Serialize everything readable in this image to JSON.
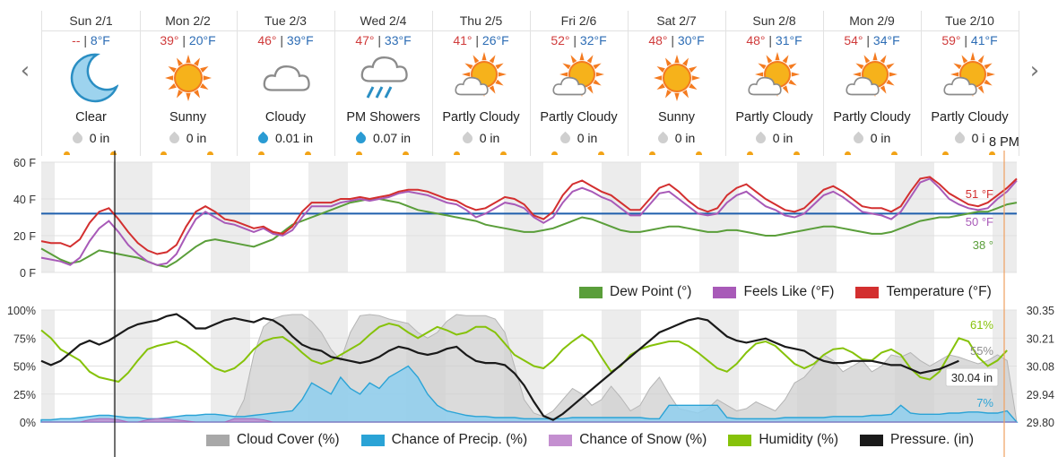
{
  "nav": {
    "prev_icon": "chevron-left-icon",
    "next_icon": "chevron-right-icon",
    "prev": "‹",
    "next": "›"
  },
  "forecast": [
    {
      "day": "Sun 2/1",
      "hi": "--",
      "lo": "8°F",
      "condition": "Clear",
      "icon": "moon-icon",
      "precip": "0 in",
      "drop": "gray"
    },
    {
      "day": "Mon 2/2",
      "hi": "39°",
      "lo": "20°F",
      "condition": "Sunny",
      "icon": "sun-icon",
      "precip": "0 in",
      "drop": "gray"
    },
    {
      "day": "Tue 2/3",
      "hi": "46°",
      "lo": "39°F",
      "condition": "Cloudy",
      "icon": "cloud-icon",
      "precip": "0.01 in",
      "drop": "blue"
    },
    {
      "day": "Wed 2/4",
      "hi": "47°",
      "lo": "33°F",
      "condition": "PM Showers",
      "icon": "rain-icon",
      "precip": "0.07 in",
      "drop": "blue"
    },
    {
      "day": "Thu 2/5",
      "hi": "41°",
      "lo": "26°F",
      "condition": "Partly Cloudy",
      "icon": "partly-cloudy-icon",
      "precip": "0 in",
      "drop": "gray"
    },
    {
      "day": "Fri 2/6",
      "hi": "52°",
      "lo": "32°F",
      "condition": "Partly Cloudy",
      "icon": "partly-cloudy-icon",
      "precip": "0 in",
      "drop": "gray"
    },
    {
      "day": "Sat 2/7",
      "hi": "48°",
      "lo": "30°F",
      "condition": "Sunny",
      "icon": "sun-icon",
      "precip": "0 in",
      "drop": "gray"
    },
    {
      "day": "Sun 2/8",
      "hi": "48°",
      "lo": "31°F",
      "condition": "Partly Cloudy",
      "icon": "partly-cloudy-icon",
      "precip": "0 in",
      "drop": "gray"
    },
    {
      "day": "Mon 2/9",
      "hi": "54°",
      "lo": "34°F",
      "condition": "Partly Cloudy",
      "icon": "partly-cloudy-icon",
      "precip": "0 in",
      "drop": "gray"
    },
    {
      "day": "Tue 2/10",
      "hi": "59°",
      "lo": "41°F",
      "condition": "Partly Cloudy",
      "icon": "partly-cloudy-icon",
      "precip": "0 i",
      "drop": "gray"
    }
  ],
  "time_label": "8 PM",
  "colors": {
    "temperature": "#d32f2f",
    "feels_like": "#a85ab8",
    "dew_point": "#5a9e3a",
    "humidity": "#86c20a",
    "pressure": "#1a1a1a",
    "cloud": "#bdbdbd",
    "precip": "#2aa3d6",
    "snow": "#c48fd0",
    "reference": "#1f5fad",
    "accent": "#f5a623"
  },
  "chart_data": [
    {
      "type": "line",
      "y_ticks": [
        "60 F",
        "40 F",
        "20 F",
        "0 F"
      ],
      "ylim": [
        0,
        60
      ],
      "reference_line": 32,
      "series": [
        {
          "name": "Temperature (°F)",
          "current_label": "51 °F",
          "values": [
            17,
            16,
            16,
            14,
            18,
            27,
            33,
            35,
            29,
            22,
            16,
            12,
            10,
            11,
            15,
            25,
            33,
            36,
            33,
            29,
            28,
            26,
            24,
            25,
            22,
            21,
            25,
            33,
            38,
            38,
            38,
            40,
            40,
            41,
            40,
            41,
            42,
            44,
            45,
            45,
            44,
            42,
            40,
            39,
            36,
            34,
            35,
            38,
            41,
            40,
            37,
            31,
            29,
            33,
            42,
            48,
            50,
            47,
            44,
            42,
            38,
            34,
            34,
            40,
            46,
            48,
            44,
            39,
            35,
            33,
            35,
            42,
            46,
            48,
            44,
            40,
            37,
            34,
            33,
            35,
            40,
            45,
            47,
            44,
            40,
            36,
            35,
            35,
            33,
            36,
            44,
            51,
            52,
            48,
            43,
            40,
            37,
            36,
            38,
            42,
            46,
            51
          ]
        },
        {
          "name": "Feels Like (°F)",
          "current_label": "50 °F",
          "values": [
            8,
            7,
            6,
            4,
            8,
            17,
            24,
            28,
            22,
            15,
            10,
            6,
            4,
            5,
            10,
            20,
            29,
            33,
            30,
            27,
            26,
            24,
            22,
            24,
            21,
            20,
            23,
            30,
            36,
            36,
            36,
            38,
            39,
            40,
            39,
            40,
            41,
            43,
            44,
            43,
            42,
            40,
            38,
            37,
            34,
            30,
            32,
            35,
            38,
            37,
            35,
            30,
            27,
            30,
            38,
            44,
            46,
            44,
            41,
            39,
            35,
            31,
            31,
            37,
            43,
            44,
            40,
            36,
            32,
            31,
            32,
            38,
            42,
            44,
            40,
            36,
            34,
            31,
            30,
            32,
            37,
            42,
            44,
            41,
            37,
            33,
            32,
            31,
            29,
            33,
            41,
            49,
            51,
            46,
            40,
            37,
            35,
            34,
            35,
            40,
            44,
            50
          ]
        },
        {
          "name": "Dew Point (°)",
          "current_label": "38 °",
          "values": [
            13,
            10,
            7,
            5,
            6,
            9,
            12,
            11,
            10,
            9,
            8,
            6,
            4,
            3,
            6,
            10,
            14,
            17,
            18,
            17,
            16,
            15,
            14,
            16,
            18,
            22,
            26,
            28,
            30,
            32,
            34,
            36,
            38,
            39,
            40,
            40,
            39,
            38,
            36,
            34,
            33,
            32,
            31,
            30,
            29,
            28,
            26,
            25,
            24,
            23,
            22,
            22,
            23,
            24,
            26,
            28,
            30,
            29,
            27,
            25,
            23,
            22,
            22,
            23,
            24,
            25,
            25,
            24,
            23,
            22,
            22,
            23,
            23,
            22,
            21,
            20,
            20,
            21,
            22,
            23,
            24,
            25,
            25,
            24,
            23,
            22,
            21,
            21,
            22,
            24,
            26,
            28,
            29,
            30,
            30,
            31,
            32,
            33,
            33,
            35,
            37,
            38
          ]
        }
      ]
    },
    {
      "type": "area",
      "y_ticks_left": [
        "100%",
        "75%",
        "50%",
        "25%",
        "0%"
      ],
      "y_ticks_right": [
        "30.35",
        "30.21",
        "30.08",
        "29.94",
        "29.80"
      ],
      "ylim": [
        0,
        100
      ],
      "ylim_right": [
        29.8,
        30.35
      ],
      "series": [
        {
          "name": "Cloud Cover (%)",
          "current_label": "55%",
          "values": [
            0,
            0,
            0,
            0,
            0,
            0,
            0,
            0,
            0,
            0,
            0,
            0,
            0,
            0,
            0,
            0,
            0,
            0,
            0,
            0,
            3,
            20,
            60,
            85,
            92,
            95,
            96,
            96,
            90,
            80,
            65,
            55,
            80,
            95,
            96,
            95,
            92,
            90,
            88,
            80,
            75,
            80,
            90,
            96,
            95,
            95,
            95,
            92,
            80,
            50,
            20,
            8,
            5,
            10,
            20,
            30,
            25,
            15,
            20,
            32,
            22,
            10,
            15,
            30,
            40,
            25,
            12,
            10,
            8,
            12,
            20,
            15,
            10,
            12,
            18,
            14,
            10,
            20,
            35,
            40,
            50,
            60,
            55,
            45,
            50,
            55,
            45,
            50,
            60,
            58,
            62,
            55,
            50,
            55,
            60,
            58,
            55,
            52,
            55,
            60,
            55
          ]
        },
        {
          "name": "Chance of Precip. (%)",
          "current_label": "7%",
          "values": [
            2,
            2,
            3,
            3,
            4,
            5,
            6,
            6,
            5,
            4,
            4,
            3,
            3,
            4,
            5,
            6,
            6,
            7,
            7,
            6,
            5,
            5,
            6,
            7,
            8,
            9,
            10,
            20,
            35,
            30,
            25,
            40,
            30,
            25,
            35,
            30,
            40,
            45,
            50,
            40,
            25,
            15,
            10,
            8,
            6,
            5,
            5,
            4,
            4,
            4,
            3,
            3,
            3,
            3,
            3,
            4,
            4,
            4,
            4,
            4,
            4,
            4,
            4,
            3,
            3,
            15,
            15,
            15,
            15,
            15,
            15,
            4,
            3,
            3,
            3,
            3,
            3,
            4,
            4,
            4,
            4,
            4,
            5,
            5,
            5,
            5,
            6,
            6,
            7,
            15,
            8,
            7,
            7,
            7,
            8,
            8,
            9,
            9,
            8,
            8,
            10
          ]
        },
        {
          "name": "Chance of Snow (%)",
          "current_label": "",
          "values": [
            0,
            0,
            0,
            0,
            0,
            2,
            3,
            3,
            2,
            0,
            0,
            2,
            3,
            3,
            2,
            1,
            0,
            0,
            0,
            0,
            3,
            3,
            3,
            2,
            0,
            0,
            0,
            0,
            0,
            0,
            0,
            0,
            0,
            0,
            0,
            0,
            0,
            0,
            0,
            0,
            0,
            0,
            0,
            0,
            0,
            0,
            0,
            0,
            0,
            0,
            0,
            0,
            0,
            0,
            0,
            0,
            0,
            0,
            0,
            0,
            0,
            0,
            0,
            0,
            0,
            0,
            0,
            0,
            0,
            0,
            0,
            0,
            0,
            0,
            0,
            0,
            0,
            0,
            0,
            0,
            0,
            0,
            0,
            0,
            0,
            0,
            0,
            0,
            0,
            0,
            0,
            0,
            0,
            0,
            0,
            0,
            0,
            0,
            0,
            0,
            0
          ]
        },
        {
          "name": "Humidity (%)",
          "current_label": "61%",
          "values": [
            82,
            75,
            65,
            60,
            55,
            45,
            40,
            38,
            36,
            44,
            55,
            65,
            68,
            70,
            72,
            68,
            62,
            55,
            48,
            45,
            48,
            55,
            65,
            72,
            75,
            76,
            70,
            62,
            55,
            52,
            55,
            60,
            65,
            70,
            78,
            85,
            88,
            86,
            80,
            75,
            80,
            85,
            82,
            78,
            80,
            85,
            85,
            80,
            70,
            60,
            55,
            50,
            48,
            55,
            65,
            72,
            78,
            72,
            58,
            45,
            50,
            60,
            65,
            68,
            70,
            72,
            72,
            68,
            62,
            55,
            48,
            45,
            52,
            62,
            70,
            72,
            68,
            60,
            52,
            48,
            52,
            60,
            65,
            66,
            62,
            56,
            55,
            62,
            65,
            60,
            48,
            40,
            38,
            45,
            60,
            75,
            72,
            58,
            50,
            55,
            64
          ]
        },
        {
          "name": "Pressure. (in)",
          "current_label": "30.04 in",
          "values": [
            30.1,
            30.08,
            30.1,
            30.14,
            30.18,
            30.2,
            30.18,
            30.2,
            30.23,
            30.26,
            30.28,
            30.29,
            30.3,
            30.32,
            30.33,
            30.3,
            30.26,
            30.26,
            30.28,
            30.3,
            30.31,
            30.3,
            30.29,
            30.31,
            30.3,
            30.27,
            30.22,
            30.18,
            30.16,
            30.15,
            30.12,
            30.11,
            30.1,
            30.09,
            30.1,
            30.12,
            30.15,
            30.17,
            30.16,
            30.14,
            30.13,
            30.14,
            30.16,
            30.17,
            30.13,
            30.1,
            30.09,
            30.09,
            30.08,
            30.04,
            29.98,
            29.9,
            29.83,
            29.81,
            29.84,
            29.88,
            29.92,
            29.96,
            30.0,
            30.04,
            30.08,
            30.12,
            30.16,
            30.2,
            30.24,
            30.26,
            30.28,
            30.3,
            30.31,
            30.3,
            30.26,
            30.22,
            30.2,
            30.19,
            30.2,
            30.21,
            30.19,
            30.17,
            30.16,
            30.15,
            30.12,
            30.1,
            30.09,
            30.09,
            30.1,
            30.1,
            30.1,
            30.09,
            30.08,
            30.08,
            30.06,
            30.04,
            30.05,
            30.06,
            30.08,
            30.1
          ]
        }
      ]
    }
  ]
}
